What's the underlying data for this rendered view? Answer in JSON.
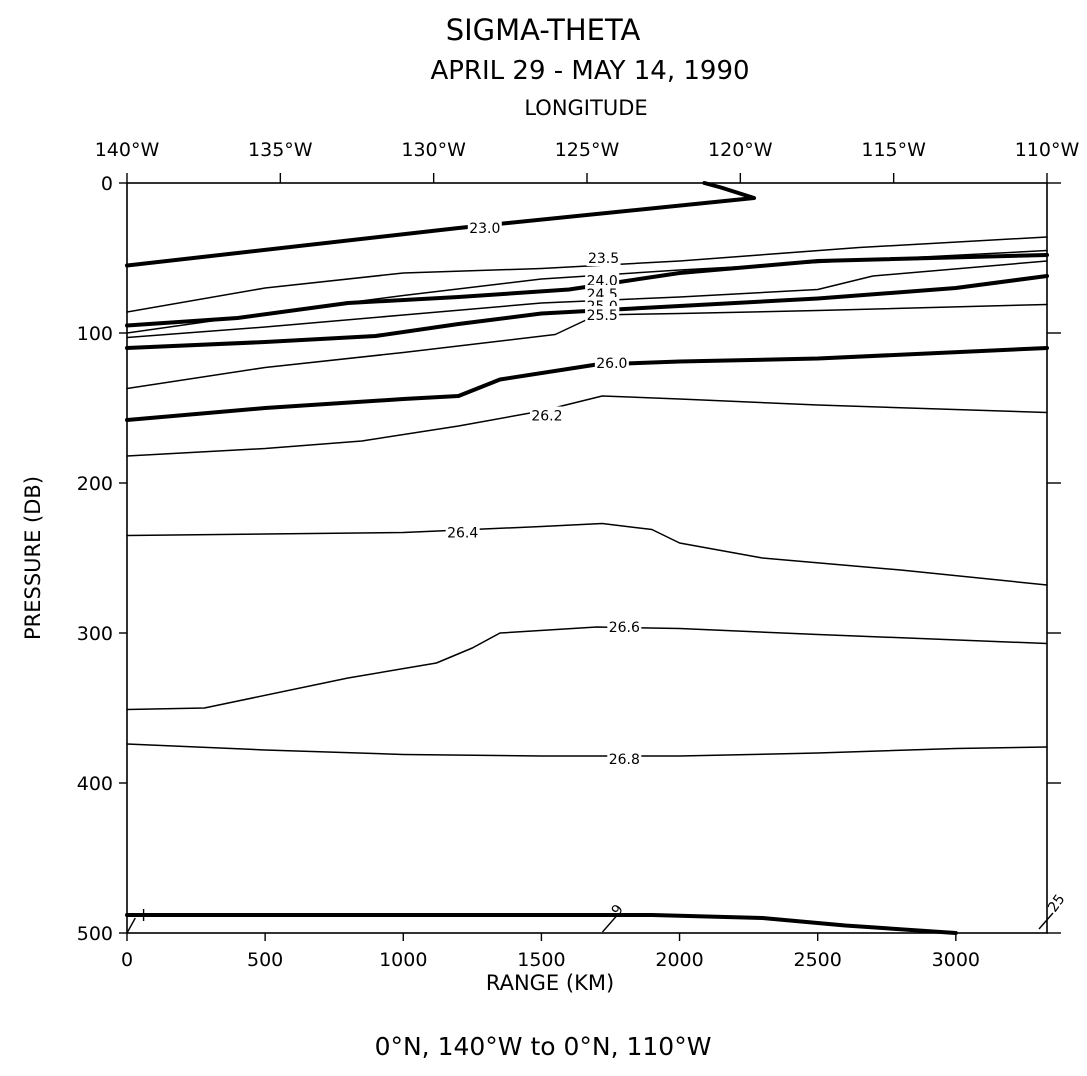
{
  "chart_data": {
    "type": "line",
    "title": "SIGMA-THETA",
    "subtitle": "APRIL 29 - MAY 14, 1990",
    "footer": "0°N, 140°W to 0°N, 110°W",
    "xlabel": "RANGE (KM)",
    "ylabel": "PRESSURE (DB)",
    "x2label": "LONGITUDE",
    "xlim": [
      0,
      3330
    ],
    "ylim": [
      500,
      0
    ],
    "x_ticks": [
      0,
      500,
      1000,
      1500,
      2000,
      2500,
      3000
    ],
    "y_ticks": [
      0,
      100,
      200,
      300,
      400,
      500
    ],
    "x2_ticks": [
      {
        "label": "140°W",
        "value": 0
      },
      {
        "label": "135°W",
        "value": 555
      },
      {
        "label": "130°W",
        "value": 1110
      },
      {
        "label": "125°W",
        "value": 1665
      },
      {
        "label": "120°W",
        "value": 2220
      },
      {
        "label": "115°W",
        "value": 2775
      },
      {
        "label": "110°W",
        "value": 3330
      }
    ],
    "series": [
      {
        "name": "23.0",
        "bold": true,
        "label_at": [
          1295,
          30
        ],
        "points": [
          [
            0,
            55
          ],
          [
            1200,
            30
          ],
          [
            2270,
            10
          ],
          [
            2150,
            3
          ],
          [
            2090,
            0
          ]
        ]
      },
      {
        "name": "",
        "bold": false,
        "label_at": null,
        "points": [
          [
            0,
            86
          ],
          [
            500,
            70
          ],
          [
            1000,
            60
          ],
          [
            1500,
            57
          ],
          [
            2000,
            52
          ],
          [
            2650,
            43
          ],
          [
            3330,
            36
          ]
        ]
      },
      {
        "name": "23.5",
        "bold": false,
        "label_at": [
          1725,
          50
        ],
        "points": [
          [
            0,
            100
          ],
          [
            500,
            87
          ],
          [
            1000,
            75
          ],
          [
            1500,
            64
          ],
          [
            2000,
            58
          ],
          [
            2500,
            53
          ],
          [
            3330,
            45
          ]
        ]
      },
      {
        "name": "24.0",
        "bold": true,
        "label_at": [
          1720,
          65
        ],
        "points": [
          [
            0,
            95
          ],
          [
            400,
            90
          ],
          [
            800,
            80
          ],
          [
            1200,
            76
          ],
          [
            1600,
            71
          ],
          [
            2000,
            60
          ],
          [
            2500,
            52
          ],
          [
            3330,
            48
          ]
        ]
      },
      {
        "name": "24.5",
        "bold": false,
        "label_at": [
          1720,
          74
        ],
        "points": [
          [
            0,
            103
          ],
          [
            500,
            96
          ],
          [
            1000,
            88
          ],
          [
            1500,
            80
          ],
          [
            2000,
            76
          ],
          [
            2500,
            71
          ],
          [
            2700,
            62
          ],
          [
            3330,
            52
          ]
        ]
      },
      {
        "name": "25.0",
        "bold": true,
        "label_at": [
          1720,
          82
        ],
        "points": [
          [
            0,
            110
          ],
          [
            500,
            106
          ],
          [
            900,
            102
          ],
          [
            1200,
            94
          ],
          [
            1500,
            87
          ],
          [
            2000,
            82
          ],
          [
            2500,
            77
          ],
          [
            3000,
            70
          ],
          [
            3330,
            62
          ]
        ]
      },
      {
        "name": "25.5",
        "bold": false,
        "label_at": [
          1720,
          88
        ],
        "points": [
          [
            0,
            137
          ],
          [
            500,
            123
          ],
          [
            1000,
            113
          ],
          [
            1550,
            101
          ],
          [
            1700,
            88
          ],
          [
            2000,
            87
          ],
          [
            2500,
            85
          ],
          [
            3330,
            81
          ]
        ]
      },
      {
        "name": "26.0",
        "bold": true,
        "label_at": [
          1755,
          120
        ],
        "points": [
          [
            0,
            158
          ],
          [
            500,
            150
          ],
          [
            1000,
            144
          ],
          [
            1200,
            142
          ],
          [
            1350,
            131
          ],
          [
            1700,
            121
          ],
          [
            2000,
            119
          ],
          [
            2500,
            117
          ],
          [
            3330,
            110
          ]
        ]
      },
      {
        "name": "26.2",
        "bold": false,
        "label_at": [
          1520,
          155
        ],
        "points": [
          [
            0,
            182
          ],
          [
            500,
            177
          ],
          [
            850,
            172
          ],
          [
            1200,
            162
          ],
          [
            1500,
            152
          ],
          [
            1720,
            142
          ],
          [
            2000,
            144
          ],
          [
            2500,
            148
          ],
          [
            3330,
            153
          ]
        ]
      },
      {
        "name": "26.4",
        "bold": false,
        "label_at": [
          1215,
          233
        ],
        "points": [
          [
            0,
            235
          ],
          [
            500,
            234
          ],
          [
            1000,
            233
          ],
          [
            1500,
            229
          ],
          [
            1720,
            227
          ],
          [
            1900,
            231
          ],
          [
            2000,
            240
          ],
          [
            2300,
            250
          ],
          [
            2800,
            258
          ],
          [
            3330,
            268
          ]
        ]
      },
      {
        "name": "26.6",
        "bold": false,
        "label_at": [
          1800,
          296
        ],
        "points": [
          [
            0,
            351
          ],
          [
            280,
            350
          ],
          [
            800,
            330
          ],
          [
            1120,
            320
          ],
          [
            1250,
            310
          ],
          [
            1350,
            300
          ],
          [
            1700,
            296
          ],
          [
            2000,
            297
          ],
          [
            2500,
            301
          ],
          [
            3330,
            307
          ]
        ]
      },
      {
        "name": "26.8",
        "bold": false,
        "label_at": [
          1800,
          384
        ],
        "points": [
          [
            0,
            374
          ],
          [
            500,
            378
          ],
          [
            1000,
            381
          ],
          [
            1500,
            382
          ],
          [
            2000,
            382
          ],
          [
            2500,
            380
          ],
          [
            3000,
            377
          ],
          [
            3330,
            376
          ]
        ]
      },
      {
        "name": "",
        "bold": true,
        "label_at": null,
        "points": [
          [
            0,
            488
          ],
          [
            1000,
            488
          ],
          [
            1900,
            488
          ],
          [
            2300,
            490
          ],
          [
            2600,
            495
          ],
          [
            3000,
            500
          ]
        ]
      }
    ],
    "edge_marks": [
      {
        "label": "9",
        "x": 1750,
        "y": 490
      },
      {
        "label": "25",
        "x": 3330,
        "y": 488
      }
    ]
  }
}
